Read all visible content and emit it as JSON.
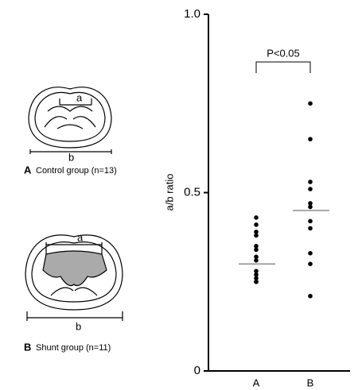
{
  "chart_data": {
    "type": "scatter",
    "y_label": "a/b ratio",
    "categories": [
      "A",
      "B"
    ],
    "series": [
      {
        "color": "#000000",
        "values": [
          0.43,
          0.41,
          0.39,
          0.38,
          0.35,
          0.34,
          0.32,
          0.31,
          0.28,
          0.27,
          0.26,
          0.25,
          0.25
        ]
      },
      {
        "color": "#000000",
        "values": [
          0.75,
          0.65,
          0.53,
          0.51,
          0.47,
          0.46,
          0.42,
          0.4,
          0.33,
          0.3,
          0.21
        ]
      }
    ],
    "means": [
      0.3,
      0.45
    ],
    "annotation": "P<0.05",
    "ylim": [
      0,
      1
    ],
    "yticks": [
      0,
      0.5,
      {
        "value": 1,
        "label": "1.0"
      }
    ]
  },
  "panels": [
    {
      "letter": "A",
      "caption": "Control group (n=13)",
      "a": "a",
      "b": "b"
    },
    {
      "letter": "B",
      "caption": "Shunt group (n=11)",
      "a": "a",
      "b": "b"
    }
  ]
}
